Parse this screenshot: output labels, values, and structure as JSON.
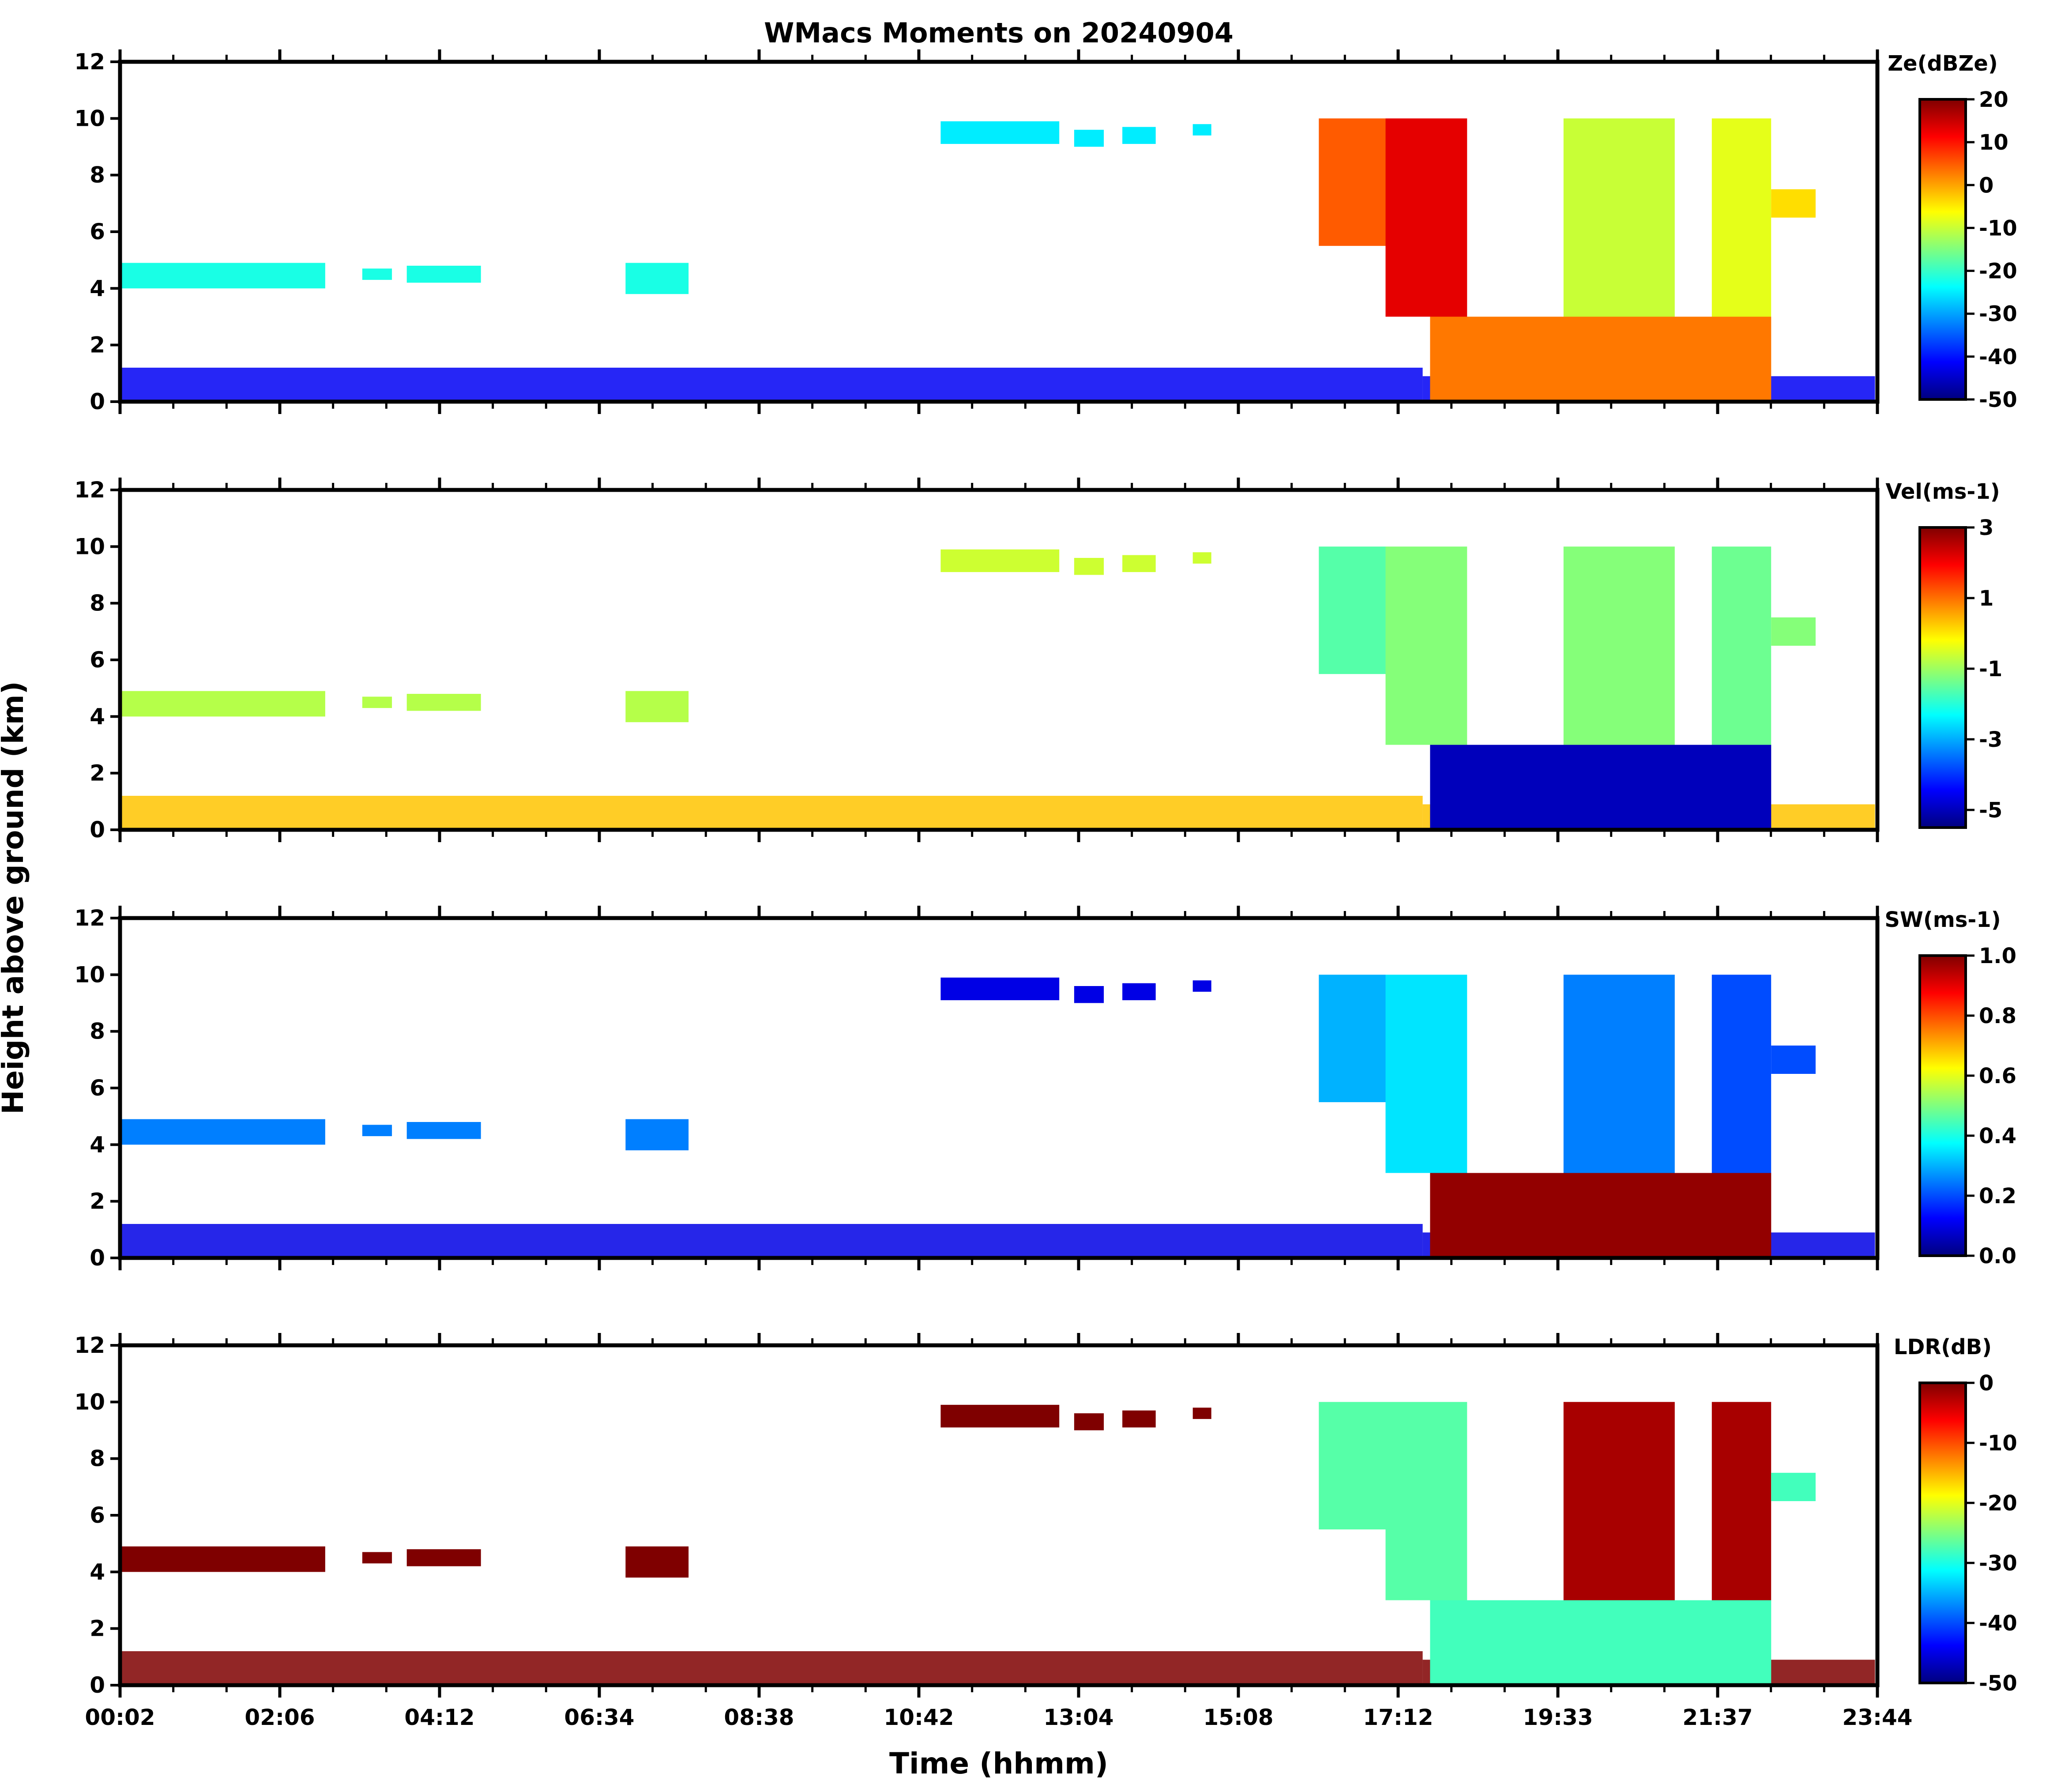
{
  "chart_data": {
    "type": "heatmap",
    "title": "WMacs Moments on 20240904",
    "xlabel": "Time (hhmm)",
    "ylabel": "Height above ground (km)",
    "x_ticks": [
      "00:02",
      "02:06",
      "04:12",
      "06:34",
      "08:38",
      "10:42",
      "13:04",
      "15:08",
      "17:12",
      "19:33",
      "21:37",
      "23:44"
    ],
    "x_hour_range": [
      0.033,
      23.733
    ],
    "y_ticks": [
      "0",
      "2",
      "4",
      "6",
      "8",
      "10",
      "12"
    ],
    "ylim": [
      0,
      12
    ],
    "panels": [
      {
        "id": "ze",
        "colorbar_label": "Ze(dBZe)",
        "colorbar_ticks": [
          "20",
          "10",
          "0",
          "-10",
          "-20",
          "-30",
          "-40",
          "-50"
        ],
        "clim": [
          -50,
          20
        ],
        "echo_value": {
          "cirrus_aloft": -25,
          "layer_4_5km": -22,
          "boundary_layer": -42,
          "deep_cloud_16h": 5,
          "deep_cloud_17h": 13,
          "rain_below_3km": 3,
          "ice_upper_19h": -10,
          "ice_upper_22h": -8,
          "ice_fragment_23h": -4
        }
      },
      {
        "id": "vel",
        "colorbar_label": "Vel(ms-1)",
        "colorbar_ticks": [
          "3",
          "1",
          "-1",
          "-3",
          "-5"
        ],
        "clim": [
          -5.5,
          3
        ],
        "echo_value": {
          "cirrus_aloft": -0.6,
          "layer_4_5km": -0.8,
          "boundary_layer": 0.3,
          "deep_cloud_16h": -1.6,
          "deep_cloud_17h": -1.2,
          "rain_below_3km": -5.0,
          "ice_upper_19h": -1.2,
          "ice_upper_22h": -1.4,
          "ice_fragment_23h": -1.2
        }
      },
      {
        "id": "sw",
        "colorbar_label": "SW(ms-1)",
        "colorbar_ticks": [
          "1.0",
          "0.8",
          "0.6",
          "0.4",
          "0.2",
          "0.0"
        ],
        "clim": [
          0,
          1
        ],
        "echo_value": {
          "cirrus_aloft": 0.1,
          "layer_4_5km": 0.25,
          "boundary_layer": 0.1,
          "deep_cloud_16h": 0.3,
          "deep_cloud_17h": 0.35,
          "rain_below_3km": 0.98,
          "ice_upper_19h": 0.25,
          "ice_upper_22h": 0.2,
          "ice_fragment_23h": 0.2
        }
      },
      {
        "id": "ldr",
        "colorbar_label": "LDR(dB)",
        "colorbar_ticks": [
          "0",
          "-10",
          "-20",
          "-30",
          "-40",
          "-50"
        ],
        "clim": [
          -50,
          0
        ],
        "echo_value": {
          "cirrus_aloft": 0,
          "layer_4_5km": 0,
          "boundary_layer": 0,
          "deep_cloud_16h": -27,
          "deep_cloud_17h": -27,
          "rain_below_3km": -28,
          "ice_upper_19h": -2,
          "ice_upper_22h": -2,
          "ice_fragment_23h": -28
        }
      }
    ],
    "echo_regions": {
      "cirrus_aloft": [
        {
          "t": [
            11.1,
            12.7
          ],
          "z": [
            9.1,
            9.9
          ]
        },
        {
          "t": [
            12.9,
            13.3
          ],
          "z": [
            9.0,
            9.6
          ]
        },
        {
          "t": [
            13.55,
            14.0
          ],
          "z": [
            9.1,
            9.7
          ]
        },
        {
          "t": [
            14.5,
            14.75
          ],
          "z": [
            9.4,
            9.8
          ]
        }
      ],
      "layer_4_5km": [
        {
          "t": [
            0.05,
            2.8
          ],
          "z": [
            4.0,
            4.9
          ]
        },
        {
          "t": [
            3.3,
            3.7
          ],
          "z": [
            4.3,
            4.7
          ]
        },
        {
          "t": [
            3.9,
            4.9
          ],
          "z": [
            4.2,
            4.8
          ]
        },
        {
          "t": [
            6.85,
            7.7
          ],
          "z": [
            3.8,
            4.9
          ]
        }
      ],
      "boundary_layer": [
        {
          "t": [
            0.0,
            17.6
          ],
          "z": [
            0.0,
            1.2
          ]
        },
        {
          "t": [
            17.6,
            23.7
          ],
          "z": [
            0.0,
            0.9
          ]
        }
      ],
      "deep_cloud_16h": [
        {
          "t": [
            16.2,
            17.1
          ],
          "z": [
            5.5,
            10.0
          ]
        }
      ],
      "deep_cloud_17h": [
        {
          "t": [
            17.1,
            18.2
          ],
          "z": [
            3.0,
            10.0
          ]
        }
      ],
      "rain_below_3km": [
        {
          "t": [
            17.7,
            22.3
          ],
          "z": [
            0.0,
            3.0
          ]
        }
      ],
      "ice_upper_19h": [
        {
          "t": [
            19.5,
            21.0
          ],
          "z": [
            3.0,
            10.0
          ]
        }
      ],
      "ice_upper_22h": [
        {
          "t": [
            21.5,
            22.3
          ],
          "z": [
            3.0,
            10.0
          ]
        }
      ],
      "ice_fragment_23h": [
        {
          "t": [
            22.3,
            22.9
          ],
          "z": [
            6.5,
            7.5
          ]
        }
      ]
    }
  }
}
